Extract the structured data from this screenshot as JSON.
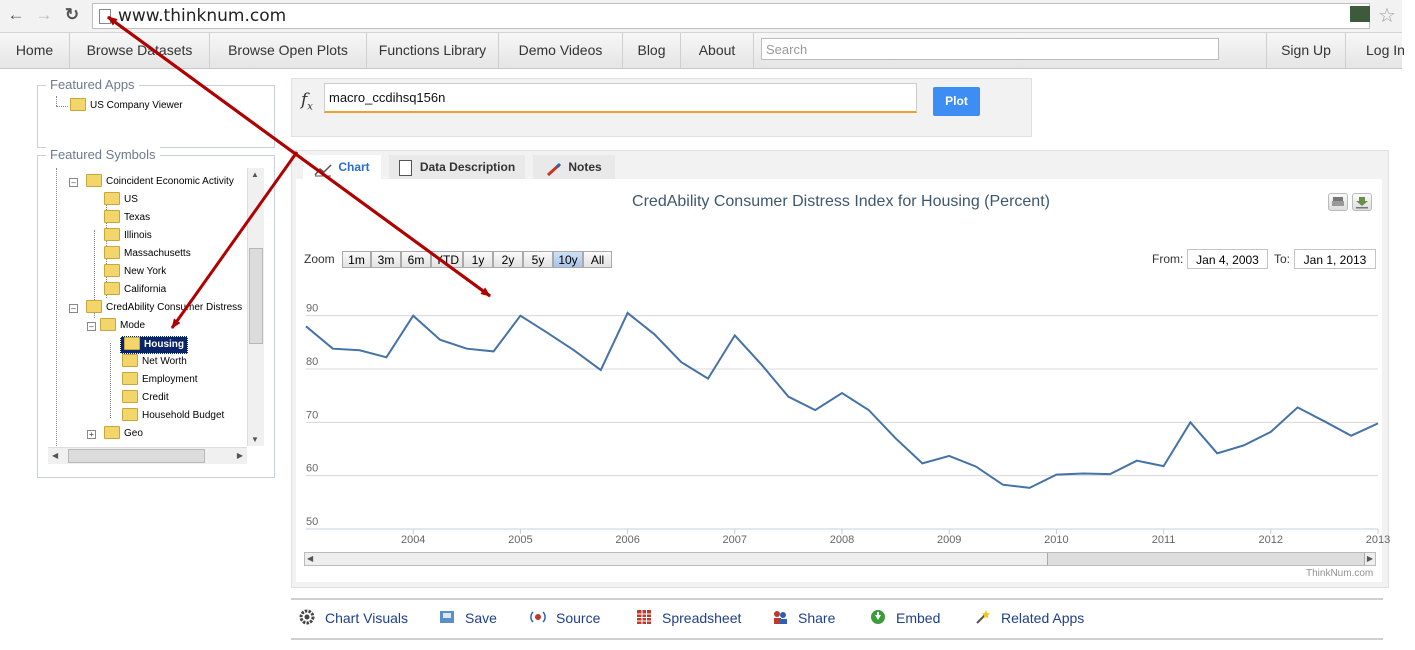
{
  "browser": {
    "url": "www.thinknum.com",
    "back_icon": "back-arrow-icon",
    "forward_icon": "forward-arrow-icon",
    "reload_icon": "reload-icon"
  },
  "nav": {
    "items": [
      "Home",
      "Browse Datasets",
      "Browse Open Plots",
      "Functions Library",
      "Demo Videos",
      "Blog",
      "About"
    ],
    "search_placeholder": "Search",
    "signup": "Sign Up",
    "login": "Log In"
  },
  "featured_apps": {
    "title": "Featured Apps",
    "items": [
      "US Company Viewer"
    ]
  },
  "featured_symbols": {
    "title": "Featured Symbols",
    "coincident": "Coincident Economic Activity",
    "coincident_children": [
      "US",
      "Texas",
      "Illinois",
      "Massachusetts",
      "New York",
      "California"
    ],
    "credability": "CredAbility Consumer Distress",
    "mode": "Mode",
    "mode_children": [
      "Housing",
      "Net Worth",
      "Employment",
      "Credit",
      "Household Budget"
    ],
    "geo": "Geo"
  },
  "formula": {
    "value": "macro_ccdihsq156n",
    "plot_label": "Plot"
  },
  "tabs": [
    "Chart",
    "Data Description",
    "Notes"
  ],
  "chart_controls": {
    "zoom_label": "Zoom",
    "zoom_options": [
      "1m",
      "3m",
      "6m",
      "YTD",
      "1y",
      "2y",
      "5y",
      "10y",
      "All"
    ],
    "selected": "10y",
    "from_label": "From:",
    "from_value": "Jan 4, 2003",
    "to_label": "To:",
    "to_value": "Jan 1, 2013",
    "credit": "ThinkNum.com"
  },
  "chart_data": {
    "type": "line",
    "title": "CredAbility Consumer Distress Index for Housing (Percent)",
    "xlabel": "",
    "ylabel": "",
    "xlim": [
      2003.0,
      2013.0
    ],
    "ylim": [
      50,
      95
    ],
    "x_ticks": [
      "2004",
      "2005",
      "2006",
      "2007",
      "2008",
      "2009",
      "2010",
      "2011",
      "2012",
      "2013"
    ],
    "y_ticks": [
      "50",
      "60",
      "70",
      "80",
      "90"
    ],
    "grid": true,
    "series": [
      {
        "color": "#4572a7",
        "x": [
          2003.0,
          2003.25,
          2003.5,
          2003.75,
          2004.0,
          2004.25,
          2004.5,
          2004.75,
          2005.0,
          2005.25,
          2005.5,
          2005.75,
          2006.0,
          2006.25,
          2006.5,
          2006.75,
          2007.0,
          2007.25,
          2007.5,
          2007.75,
          2008.0,
          2008.25,
          2008.5,
          2008.75,
          2009.0,
          2009.25,
          2009.5,
          2009.75,
          2010.0,
          2010.25,
          2010.5,
          2010.75,
          2011.0,
          2011.25,
          2011.5,
          2011.75,
          2012.0,
          2012.25,
          2012.5,
          2012.75,
          2013.0
        ],
        "y": [
          88,
          83.8,
          83.5,
          82.2,
          90,
          85.5,
          83.8,
          83.3,
          90,
          86.8,
          83.5,
          79.8,
          90.5,
          86.5,
          81.3,
          78.2,
          86.3,
          80.8,
          74.8,
          72.3,
          75.5,
          72.3,
          67,
          62.3,
          63.7,
          61.7,
          58.3,
          57.7,
          60.2,
          60.4,
          60.3,
          62.8,
          61.8,
          70,
          64.2,
          65.7,
          68.2,
          72.8,
          70.2,
          67.5,
          69.8
        ]
      }
    ]
  },
  "toolbar": {
    "items": [
      "Chart Visuals",
      "Save",
      "Source",
      "Spreadsheet",
      "Share",
      "Embed",
      "Related Apps"
    ]
  }
}
